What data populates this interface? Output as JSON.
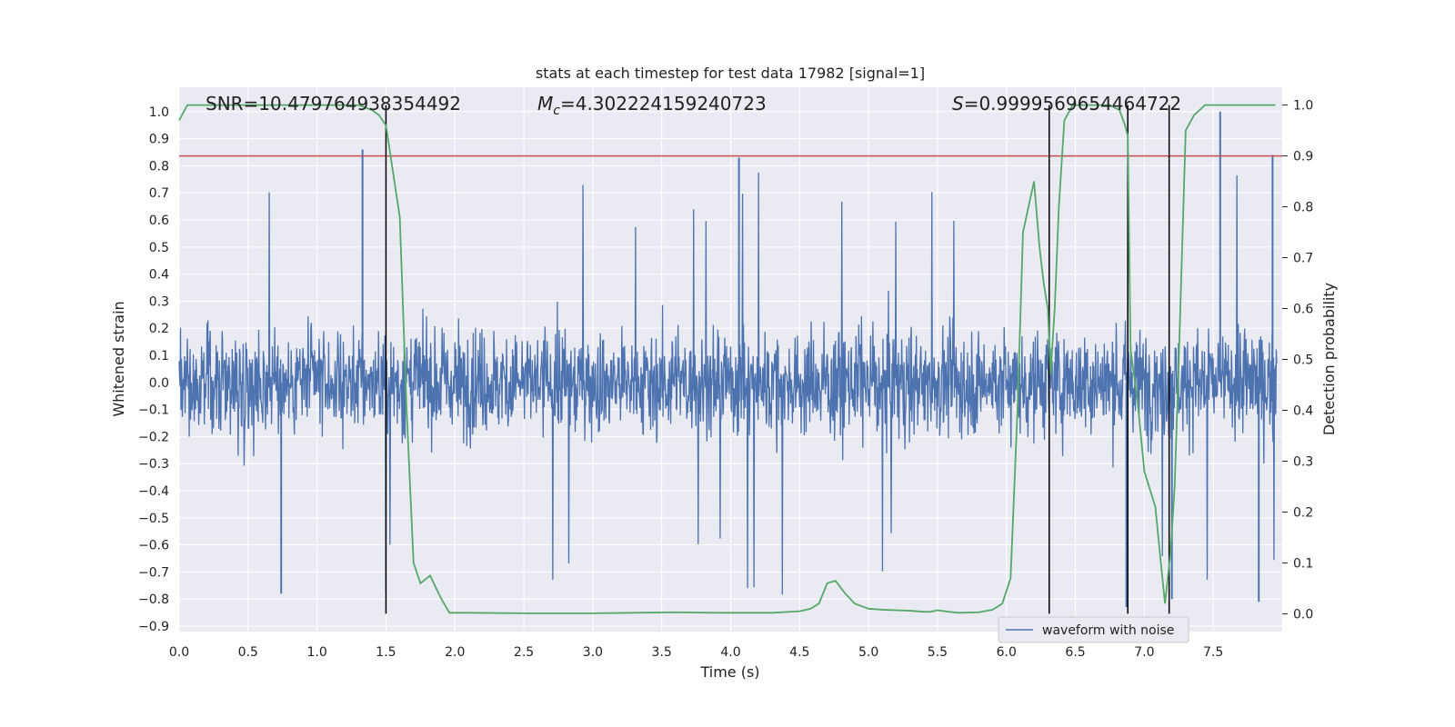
{
  "chart_data": {
    "type": "line",
    "title": "stats at each timestep for test data 17982 [signal=1]",
    "xlabel": "Time (s)",
    "ylabel": "Whitened strain",
    "ylabel_right": "Detection probability",
    "xlim": [
      0.0,
      8.0
    ],
    "ylim": [
      -0.92,
      1.09
    ],
    "ylim_right": [
      -0.035,
      1.035
    ],
    "x_ticks": [
      "0.0",
      "0.5",
      "1.0",
      "1.5",
      "2.0",
      "2.5",
      "3.0",
      "3.5",
      "4.0",
      "4.5",
      "5.0",
      "5.5",
      "6.0",
      "6.5",
      "7.0",
      "7.5"
    ],
    "y_ticks": [
      "1.0",
      "0.9",
      "0.8",
      "0.7",
      "0.6",
      "0.5",
      "0.4",
      "0.3",
      "0.2",
      "0.1",
      "0.0",
      "−0.1",
      "−0.2",
      "−0.3",
      "−0.4",
      "−0.5",
      "−0.6",
      "−0.7",
      "−0.8",
      "−0.9"
    ],
    "y_tick_values": [
      1.0,
      0.9,
      0.8,
      0.7,
      0.6,
      0.5,
      0.4,
      0.3,
      0.2,
      0.1,
      0.0,
      -0.1,
      -0.2,
      -0.3,
      -0.4,
      -0.5,
      -0.6,
      -0.7,
      -0.8,
      -0.9
    ],
    "y_right_ticks": [
      "1.0",
      "0.9",
      "0.8",
      "0.7",
      "0.6",
      "0.5",
      "0.4",
      "0.3",
      "0.2",
      "0.1",
      "0.0"
    ],
    "y_right_tick_values": [
      1.0,
      0.9,
      0.8,
      0.7,
      0.6,
      0.5,
      0.4,
      0.3,
      0.2,
      0.1,
      0.0
    ],
    "annotations": {
      "snr": "SNR=10.479764938354492",
      "mc": "=4.302224159240723",
      "mc_symbol": "M",
      "mc_sub": "c",
      "s": "=0.9999569654464722",
      "s_symbol": "S"
    },
    "legend": {
      "label": "waveform with noise",
      "placement": "lower-right"
    },
    "threshold_line": {
      "value_right": 0.9,
      "color": "#c44e52"
    },
    "vertical_markers": [
      1.5,
      6.31,
      6.88,
      7.18
    ],
    "series": [
      {
        "name": "waveform with noise",
        "color": "#4c72b0",
        "axis": "left",
        "noise_envelope_typical": [
          -0.42,
          0.44
        ],
        "noise_envelope_peak": [
          -0.82,
          1.0
        ],
        "notable_peaks": [
          {
            "x": 1.33,
            "y": 0.86
          },
          {
            "x": 4.06,
            "y": 0.83
          },
          {
            "x": 7.55,
            "y": 1.0
          },
          {
            "x": 7.93,
            "y": 0.84
          },
          {
            "x": 0.74,
            "y": -0.78
          },
          {
            "x": 6.87,
            "y": -0.83
          },
          {
            "x": 7.2,
            "y": -0.8
          },
          {
            "x": 7.83,
            "y": -0.81
          }
        ]
      },
      {
        "name": "detection probability",
        "color": "#55a868",
        "axis": "right",
        "x": [
          0.0,
          0.06,
          0.15,
          0.3,
          0.5,
          0.7,
          0.9,
          1.1,
          1.2,
          1.3,
          1.4,
          1.45,
          1.5,
          1.55,
          1.6,
          1.65,
          1.7,
          1.75,
          1.82,
          1.9,
          1.96,
          2.1,
          2.5,
          3.0,
          3.3,
          3.6,
          3.9,
          4.3,
          4.5,
          4.58,
          4.64,
          4.7,
          4.76,
          4.83,
          4.9,
          5.0,
          5.1,
          5.2,
          5.3,
          5.4,
          5.45,
          5.5,
          5.58,
          5.65,
          5.8,
          5.9,
          5.97,
          6.03,
          6.08,
          6.12,
          6.2,
          6.24,
          6.27,
          6.3,
          6.32,
          6.35,
          6.38,
          6.42,
          6.48,
          6.6,
          6.75,
          6.82,
          6.86,
          6.88,
          6.9,
          6.95,
          7.0,
          7.08,
          7.12,
          7.15,
          7.19,
          7.22,
          7.25,
          7.3,
          7.36,
          7.44,
          7.55,
          7.75,
          7.95
        ],
        "values": [
          0.97,
          1.0,
          1.0,
          1.0,
          1.0,
          1.0,
          1.0,
          1.0,
          1.0,
          1.0,
          0.99,
          0.98,
          0.96,
          0.87,
          0.78,
          0.4,
          0.1,
          0.06,
          0.075,
          0.03,
          0.002,
          0.002,
          0.001,
          0.001,
          0.002,
          0.003,
          0.002,
          0.002,
          0.005,
          0.01,
          0.02,
          0.06,
          0.065,
          0.04,
          0.02,
          0.01,
          0.008,
          0.007,
          0.006,
          0.004,
          0.004,
          0.007,
          0.004,
          0.002,
          0.003,
          0.008,
          0.02,
          0.07,
          0.4,
          0.75,
          0.85,
          0.72,
          0.65,
          0.6,
          0.47,
          0.6,
          0.8,
          0.97,
          1.0,
          1.0,
          1.0,
          0.99,
          0.96,
          0.94,
          0.52,
          0.42,
          0.28,
          0.21,
          0.1,
          0.02,
          0.12,
          0.25,
          0.5,
          0.95,
          0.98,
          1.0,
          1.0,
          1.0,
          1.0
        ]
      }
    ]
  }
}
